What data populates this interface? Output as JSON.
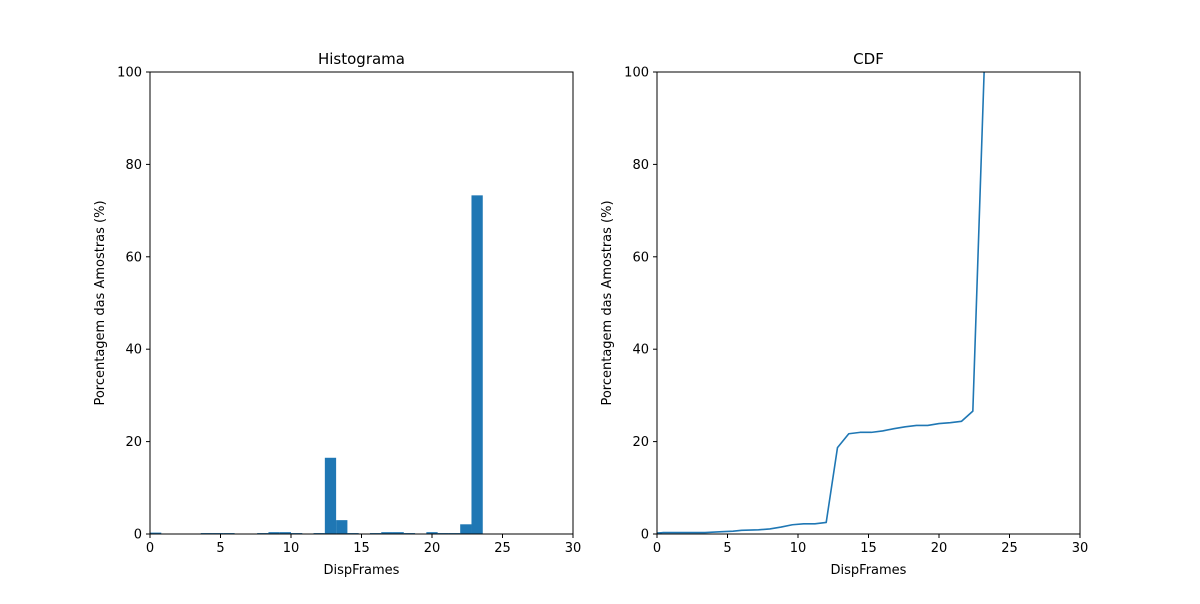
{
  "chart_data": [
    {
      "type": "bar",
      "title": "Histograma",
      "xlabel": "DispFrames",
      "ylabel": "Porcentagem das Amostras (%)",
      "xlim": [
        0,
        30
      ],
      "ylim": [
        0,
        100
      ],
      "xticks": [
        0,
        5,
        10,
        15,
        20,
        25,
        30
      ],
      "yticks": [
        0,
        20,
        40,
        60,
        80,
        100
      ],
      "grid": false,
      "color": "#1f77b4",
      "bins": [
        {
          "x0": 0.0,
          "x1": 0.8,
          "value": 0.3
        },
        {
          "x0": 3.6,
          "x1": 4.4,
          "value": 0.2
        },
        {
          "x0": 4.4,
          "x1": 5.2,
          "value": 0.2
        },
        {
          "x0": 5.2,
          "x1": 6.0,
          "value": 0.2
        },
        {
          "x0": 7.6,
          "x1": 8.4,
          "value": 0.2
        },
        {
          "x0": 8.4,
          "x1": 9.2,
          "value": 0.4
        },
        {
          "x0": 9.2,
          "x1": 10.0,
          "value": 0.4
        },
        {
          "x0": 10.0,
          "x1": 10.8,
          "value": 0.2
        },
        {
          "x0": 11.6,
          "x1": 12.4,
          "value": 0.2
        },
        {
          "x0": 12.4,
          "x1": 13.2,
          "value": 16.5
        },
        {
          "x0": 13.2,
          "x1": 14.0,
          "value": 3.0
        },
        {
          "x0": 14.0,
          "x1": 14.8,
          "value": 0.2
        },
        {
          "x0": 15.6,
          "x1": 16.4,
          "value": 0.2
        },
        {
          "x0": 16.4,
          "x1": 17.2,
          "value": 0.4
        },
        {
          "x0": 17.2,
          "x1": 18.0,
          "value": 0.4
        },
        {
          "x0": 18.0,
          "x1": 18.8,
          "value": 0.2
        },
        {
          "x0": 19.6,
          "x1": 20.4,
          "value": 0.4
        },
        {
          "x0": 20.4,
          "x1": 21.2,
          "value": 0.2
        },
        {
          "x0": 21.2,
          "x1": 22.0,
          "value": 0.2
        },
        {
          "x0": 22.0,
          "x1": 22.8,
          "value": 2.1
        },
        {
          "x0": 22.8,
          "x1": 23.6,
          "value": 73.3
        }
      ]
    },
    {
      "type": "line",
      "title": "CDF",
      "xlabel": "DispFrames",
      "ylabel": "Porcentagem das Amostras (%)",
      "xlim": [
        0,
        30
      ],
      "ylim": [
        0,
        100
      ],
      "xticks": [
        0,
        5,
        10,
        15,
        20,
        25,
        30
      ],
      "yticks": [
        0,
        20,
        40,
        60,
        80,
        100
      ],
      "grid": false,
      "color": "#1f77b4",
      "x": [
        0,
        0.4,
        3.4,
        4.6,
        5.4,
        6.0,
        7.2,
        8.0,
        8.8,
        9.6,
        10.4,
        11.2,
        12.0,
        12.8,
        13.6,
        14.4,
        15.2,
        16.0,
        16.8,
        17.6,
        18.4,
        19.2,
        20.0,
        20.8,
        21.6,
        22.4,
        23.2
      ],
      "y": [
        0.2,
        0.3,
        0.3,
        0.5,
        0.6,
        0.8,
        0.9,
        1.1,
        1.5,
        2.0,
        2.2,
        2.2,
        2.5,
        18.7,
        21.7,
        22.0,
        22.0,
        22.3,
        22.8,
        23.2,
        23.5,
        23.5,
        23.9,
        24.1,
        24.4,
        26.6,
        100.0
      ]
    }
  ]
}
